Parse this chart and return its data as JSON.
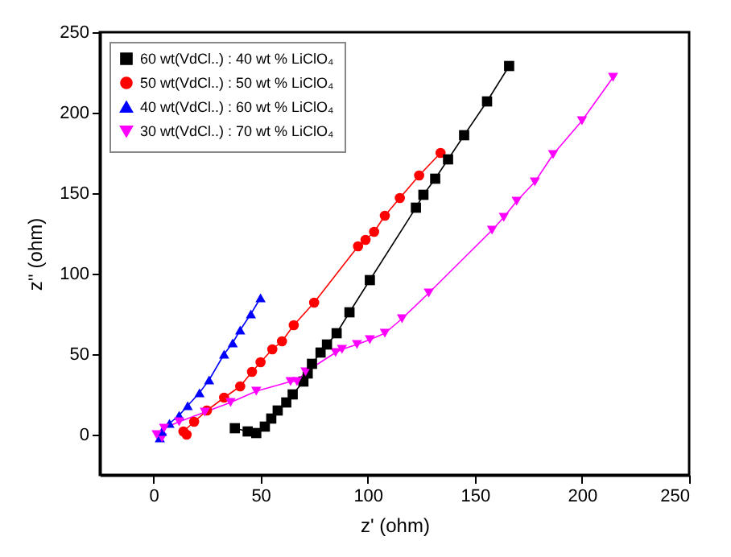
{
  "chart_data": {
    "type": "line",
    "xlabel": "z' (ohm)",
    "ylabel": "z'' (ohm)",
    "xlim": [
      -25,
      250
    ],
    "ylim": [
      -25,
      250
    ],
    "xticks": [
      0,
      50,
      100,
      150,
      200,
      250
    ],
    "yticks": [
      0,
      50,
      100,
      150,
      200,
      250
    ],
    "grid": false,
    "legend": "top left",
    "series": [
      {
        "name": "60 wt(VdCl..) : 40 wt % LiClO₄",
        "color": "#000000",
        "marker": "square",
        "x": [
          38,
          44,
          48,
          52,
          55,
          58,
          62,
          65,
          70,
          72,
          74,
          78,
          81,
          85.5,
          91.5,
          101,
          122.5,
          126,
          131.5,
          137.5,
          145,
          155.7,
          166
        ],
        "values": [
          4,
          2,
          1,
          5,
          10,
          15,
          20,
          25,
          33,
          38,
          44,
          51,
          56,
          63,
          76,
          96,
          141,
          149,
          159,
          171,
          186,
          207,
          229
        ]
      },
      {
        "name": "50 wt(VdCl..) : 50 wt % LiClO₄",
        "color": "#ff0000",
        "marker": "circle",
        "x": [
          15.5,
          14,
          19,
          25,
          33,
          40.5,
          46,
          50,
          55.5,
          60,
          65.5,
          75,
          95.5,
          99,
          103,
          108,
          115,
          124,
          134
        ],
        "values": [
          0,
          2,
          8,
          15,
          23,
          30,
          39,
          45,
          53,
          58,
          68,
          82,
          117,
          121,
          126,
          136,
          147,
          161,
          175
        ]
      },
      {
        "name": "40 wt(VdCl..) : 60 wt % LiClO₄",
        "color": "#0000ff",
        "marker": "triangle",
        "x": [
          3,
          4,
          7.5,
          12,
          16,
          21.5,
          26,
          33,
          37,
          40.5,
          45.5,
          50
        ],
        "values": [
          -2,
          2,
          7,
          12,
          18,
          26,
          34,
          50,
          57,
          65,
          75,
          85
        ]
      },
      {
        "name": "30 wt(VdCl..) : 70 wt % LiClO₄",
        "color": "#ff00ff",
        "marker": "triangle-down",
        "x": [
          4,
          1.5,
          5,
          12,
          24,
          36,
          48,
          64,
          67,
          71,
          85,
          88,
          95,
          101,
          108,
          116,
          128.5,
          158,
          163.5,
          169.5,
          178,
          186.5,
          200,
          214.5
        ],
        "values": [
          -2,
          0,
          4,
          8,
          14,
          20,
          27,
          33,
          33,
          39,
          51,
          53,
          56,
          59,
          63,
          72,
          88,
          127,
          135,
          145,
          157,
          174,
          195,
          222
        ]
      }
    ]
  }
}
